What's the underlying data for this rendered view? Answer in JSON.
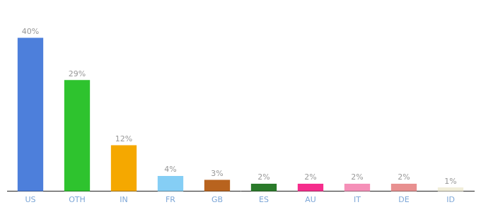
{
  "chart_data": {
    "type": "bar",
    "categories": [
      "US",
      "OTH",
      "IN",
      "FR",
      "GB",
      "ES",
      "AU",
      "IT",
      "DE",
      "ID"
    ],
    "values": [
      40,
      29,
      12,
      4,
      3,
      2,
      2,
      2,
      2,
      1
    ],
    "value_labels": [
      "40%",
      "29%",
      "12%",
      "4%",
      "3%",
      "2%",
      "2%",
      "2%",
      "2%",
      "1%"
    ],
    "colors": [
      "#4d7fdb",
      "#2ec32e",
      "#f5a800",
      "#85cef5",
      "#b8631e",
      "#2a7a2a",
      "#f52d8c",
      "#f590b8",
      "#e89090",
      "#f0edd8"
    ],
    "ylim": [
      0,
      48
    ],
    "data_labels": true,
    "tick_labels": "x",
    "grid": false
  }
}
